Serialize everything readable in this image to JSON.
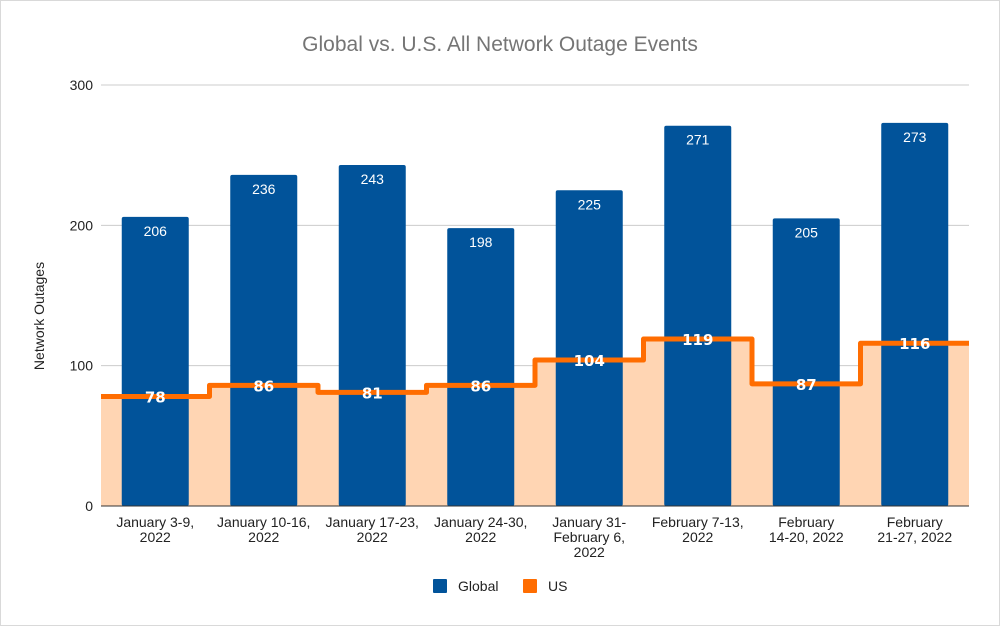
{
  "chart_data": {
    "type": "bar",
    "title": "Global vs. U.S. All Network Outage Events",
    "xlabel": "",
    "ylabel": "Network Outages",
    "ylim": [
      0,
      300
    ],
    "yticks": [
      0,
      100,
      200,
      300
    ],
    "grid": true,
    "legend_position": "bottom",
    "categories": [
      [
        "January 3-9,",
        "2022"
      ],
      [
        "January 10-16,",
        "2022"
      ],
      [
        "January 17-23,",
        "2022"
      ],
      [
        "January 24-30,",
        "2022"
      ],
      [
        "January 31-",
        "February 6,",
        "2022"
      ],
      [
        "February 7-13,",
        "2022"
      ],
      [
        "February",
        "14-20, 2022"
      ],
      [
        "February",
        "21-27, 2022"
      ]
    ],
    "series": [
      {
        "name": "Global",
        "kind": "bar",
        "color": "#01539a",
        "values": [
          206,
          236,
          243,
          198,
          225,
          271,
          205,
          273
        ]
      },
      {
        "name": "US",
        "kind": "stepped-area",
        "color": "#ff6d01",
        "fill_color": "#ffd5b3",
        "values": [
          78,
          86,
          81,
          86,
          104,
          119,
          87,
          116
        ]
      }
    ]
  }
}
